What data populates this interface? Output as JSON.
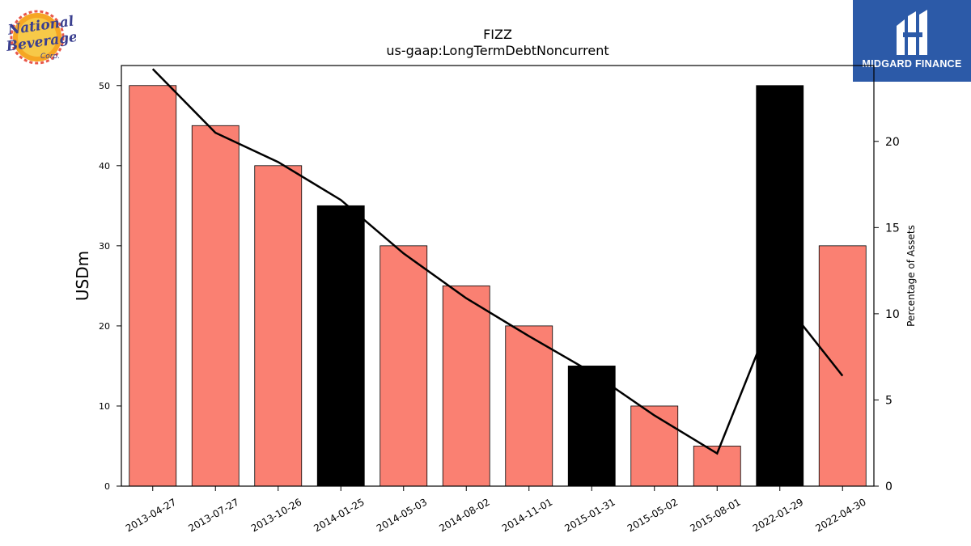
{
  "chart_data": {
    "type": "bar",
    "title": "FIZZ",
    "subtitle": "us-gaap:LongTermDebtNoncurrent",
    "ylabel": "USDm",
    "y2label": "Percentage of Assets",
    "categories": [
      "2013-04-27",
      "2013-07-27",
      "2013-10-26",
      "2014-01-25",
      "2014-05-03",
      "2014-08-02",
      "2014-11-01",
      "2015-01-31",
      "2015-05-02",
      "2015-08-01",
      "2022-01-29",
      "2022-04-30"
    ],
    "values": [
      50,
      45,
      40,
      35,
      30,
      25,
      20,
      15,
      10,
      5,
      50,
      30
    ],
    "highlighted": [
      false,
      false,
      false,
      true,
      false,
      false,
      false,
      true,
      false,
      false,
      true,
      false
    ],
    "line_series": {
      "axis": "right",
      "values": [
        24.2,
        20.5,
        18.8,
        16.6,
        13.5,
        10.9,
        8.7,
        6.6,
        4.1,
        1.9,
        11.0,
        6.4
      ]
    },
    "ylim": [
      0,
      52.5
    ],
    "y2lim": [
      0,
      24.4
    ],
    "yticks": [
      0,
      10,
      20,
      30,
      40,
      50
    ],
    "y2ticks": [
      0,
      5,
      10,
      15,
      20
    ],
    "colors": {
      "bar": "#fa8072",
      "bar_highlight": "#000000",
      "line": "#000000"
    }
  },
  "logos": {
    "left_brand": "National Beverage Corp.",
    "right_brand": "MIDGARD FINANCE"
  }
}
